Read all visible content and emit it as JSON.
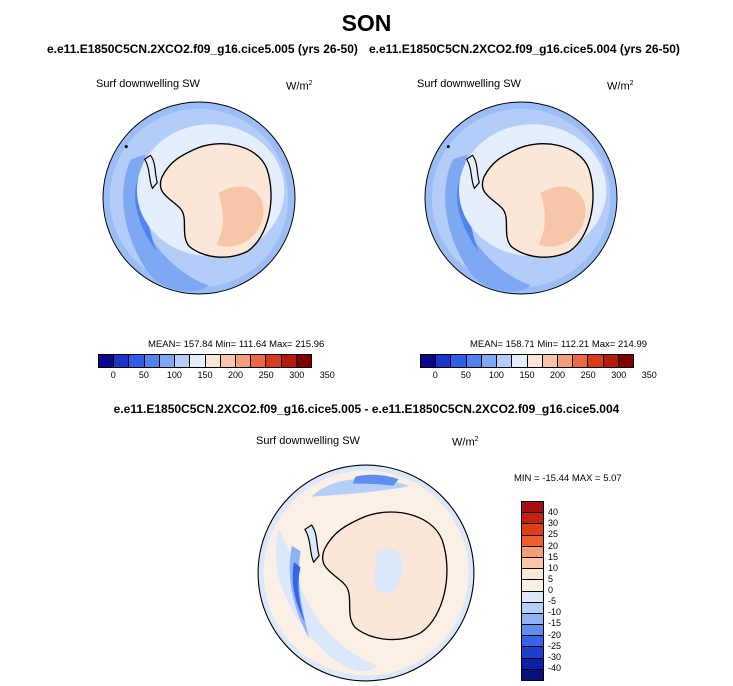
{
  "title": "SON",
  "left_panel": {
    "case": "e.e11.E1850C5CN.2XCO2.f09_g16.cice5.005 (yrs 26-50)",
    "variable": "Surf downwelling SW",
    "units": "W/m",
    "units_exp": "2",
    "stats": "MEAN= 157.84  Min= 111.64  Max= 215.96",
    "colorbar_ticks": [
      "0",
      "50",
      "100",
      "150",
      "200",
      "250",
      "300",
      "350"
    ]
  },
  "right_panel": {
    "case": "e.e11.E1850C5CN.2XCO2.f09_g16.cice5.004 (yrs 26-50)",
    "variable": "Surf downwelling SW",
    "units": "W/m",
    "units_exp": "2",
    "stats": "MEAN= 158.71  Min= 112.21  Max= 214.99",
    "colorbar_ticks": [
      "0",
      "50",
      "100",
      "150",
      "200",
      "250",
      "300",
      "350"
    ]
  },
  "diff_panel": {
    "title": "e.e11.E1850C5CN.2XCO2.f09_g16.cice5.005 - e.e11.E1850C5CN.2XCO2.f09_g16.cice5.004",
    "variable": "Surf downwelling SW",
    "units": "W/m",
    "units_exp": "2",
    "stats": "MIN = -15.44 MAX =   5.07",
    "colorbar_ticks": [
      "40",
      "30",
      "25",
      "20",
      "15",
      "10",
      "5",
      "0",
      "-5",
      "-10",
      "-15",
      "-20",
      "-25",
      "-30",
      "-40"
    ]
  },
  "colors": {
    "abs_scale": [
      "#08088c",
      "#1a35c8",
      "#2e5fe6",
      "#4f84f0",
      "#7ea8f4",
      "#b4cdf8",
      "#e4eefc",
      "#fbe6d8",
      "#f7c6a8",
      "#f29f7a",
      "#eb6a45",
      "#d83a1c",
      "#b51a0a",
      "#800000"
    ],
    "diff_scale": [
      "#a50f0f",
      "#c8200f",
      "#e03c16",
      "#f05f2b",
      "#f79e78",
      "#fbc6a8",
      "#fde8d8",
      "#fbf0e5",
      "#dbe8fb",
      "#b6cff8",
      "#8eb2f4",
      "#5d8ef0",
      "#3565e6",
      "#1c3fcc",
      "#0d1fa8",
      "#06107a"
    ],
    "continent_outline": "#000000"
  }
}
